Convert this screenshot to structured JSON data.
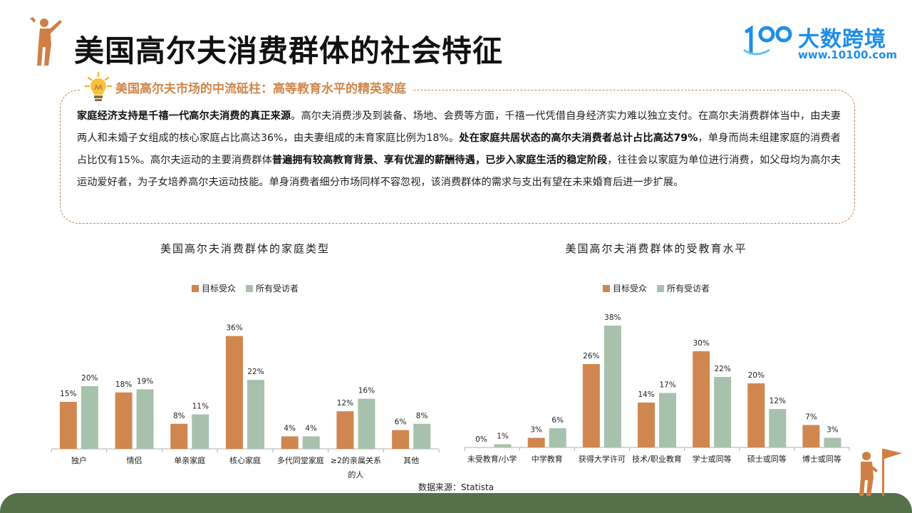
{
  "header": {
    "title": "美国高尔夫消费群体的社会特征",
    "logo_name": "大数跨境",
    "logo_url": "www.10100.com",
    "logo_mark_text": "100"
  },
  "callout": {
    "title": "美国高尔夫市场的中流砥柱：高等教育水平的精英家庭",
    "paragraph": [
      {
        "text": "家庭经济支持是千禧一代高尔夫消费的真正来源",
        "bold": true
      },
      {
        "text": "。高尔夫消费涉及到装备、场地、会费等方面，千禧一代凭借自身经济实力难以独立支付。在高尔夫消费群体当中，由夫妻两人和未婚子女组成的核心家庭占比高达36%，由夫妻组成的未育家庭比例为18%。",
        "bold": false
      },
      {
        "text": "处在家庭共居状态的高尔夫消费者总计占比高达79%",
        "bold": true
      },
      {
        "text": "，单身而尚未组建家庭的消费者占比仅有15%。高尔夫运动的主要消费群体",
        "bold": false
      },
      {
        "text": "普遍拥有较高教育背景、享有优渥的薪酬待遇，已步入家庭生活的稳定阶段",
        "bold": true
      },
      {
        "text": "，往往会以家庭为单位进行消费，如父母均为高尔夫运动爱好者，为子女培养高尔夫运动技能。单身消费者细分市场同样不容忽视，该消费群体的需求与支出有望在未来婚育后进一步扩展。",
        "bold": false
      }
    ]
  },
  "colors": {
    "target": "#d0874f",
    "all": "#a8c1ad",
    "accent": "#d0874a",
    "footer": "#56704a",
    "brand": "#1e8ee8"
  },
  "chart_data": [
    {
      "type": "bar",
      "title": "美国高尔夫消费群体的家庭类型",
      "categories": [
        "独户",
        "情侣",
        "单亲家庭",
        "核心家庭",
        "多代同堂家庭",
        "≥2的亲属关系的人",
        "其他"
      ],
      "category_lines": [
        [
          "独户"
        ],
        [
          "情侣"
        ],
        [
          "单亲家庭"
        ],
        [
          "核心家庭"
        ],
        [
          "多代同堂家庭"
        ],
        [
          "≥2的亲属关系",
          "的人"
        ],
        [
          "其他"
        ]
      ],
      "series": [
        {
          "name": "目标受众",
          "values": [
            15,
            18,
            8,
            36,
            4,
            12,
            6
          ]
        },
        {
          "name": "所有受访者",
          "values": [
            20,
            19,
            11,
            22,
            4,
            16,
            8
          ]
        }
      ],
      "value_suffix": "%",
      "ylim": [
        0,
        40
      ],
      "grid": false,
      "legend": "top"
    },
    {
      "type": "bar",
      "title": "美国高尔夫消费群体的受教育水平",
      "categories": [
        "未受教育/小学",
        "中学教育",
        "获得大学许可",
        "技术/职业教育",
        "学士或同等",
        "硕士或同等",
        "博士或同等"
      ],
      "category_lines": [
        [
          "未受教育/小学"
        ],
        [
          "中学教育"
        ],
        [
          "获得大学许可"
        ],
        [
          "技术/职业教育"
        ],
        [
          "学士或同等"
        ],
        [
          "硕士或同等"
        ],
        [
          "博士或同等"
        ]
      ],
      "series": [
        {
          "name": "目标受众",
          "values": [
            0,
            3,
            26,
            14,
            30,
            20,
            7
          ]
        },
        {
          "name": "所有受访者",
          "values": [
            1,
            6,
            38,
            17,
            22,
            12,
            3
          ]
        }
      ],
      "value_suffix": "%",
      "ylim": [
        0,
        40
      ],
      "grid": false,
      "legend": "top"
    }
  ],
  "source": "数据来源：Statista",
  "icons": {
    "header_icon": "golfer-icon",
    "callout_icon": "lightbulb-icon",
    "footer_icon": "golfer-with-flag-icon"
  }
}
